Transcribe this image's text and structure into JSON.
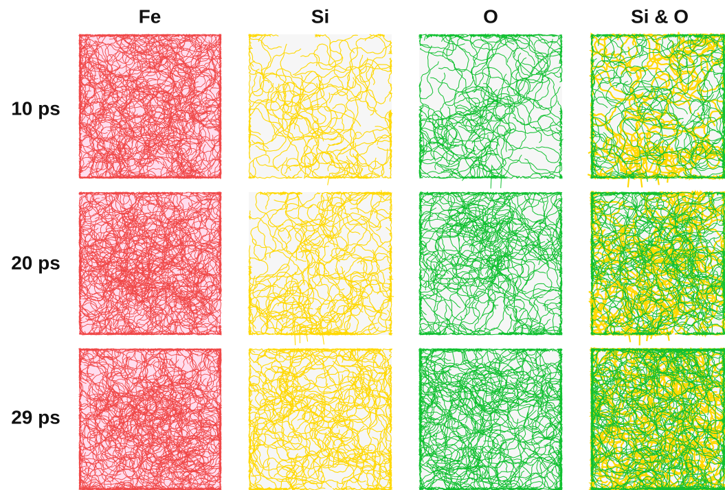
{
  "columns": [
    "Fe",
    "Si",
    "O",
    "Si & O"
  ],
  "rows": [
    "10 ps",
    "20 ps",
    "29 ps"
  ]
}
